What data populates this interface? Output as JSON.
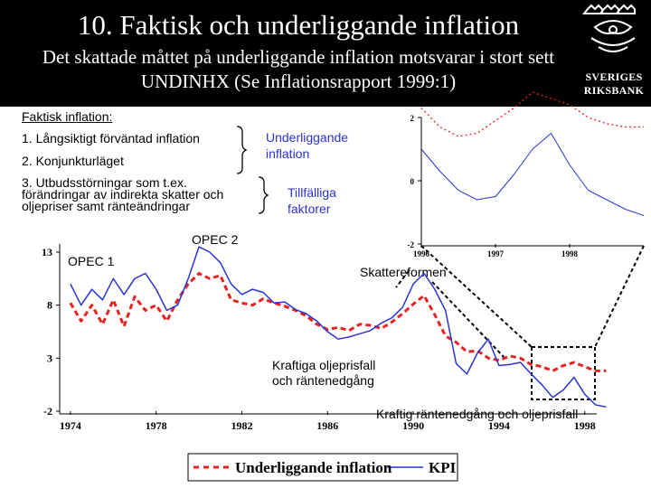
{
  "slide": {
    "title": "10. Faktisk och underliggande inflation",
    "subtitle": "Det skattade måttet på underliggande inflation motsvarar i stort sett UNDINHX (Se Inflationsrapport 1999:1)",
    "logo": {
      "line1": "SVERIGES",
      "line2": "RIKSBANK"
    }
  },
  "notes": {
    "heading": "Faktisk inflation:",
    "item1": "1. Långsiktigt förväntad inflation",
    "item2": "2. Konjunkturläget",
    "item3_line1": "3. Utbudsstörningar som t.ex.",
    "item3_line2": "förändringar av indirekta skatter och",
    "item3_line3": "oljepriser samt ränteändringar",
    "bracket1_line1": "Underliggande",
    "bracket1_line2": "inflation",
    "bracket2_line1": "Tillfälliga",
    "bracket2_line2": "faktorer"
  },
  "annotations": {
    "opec1": "OPEC 1",
    "opec2": "OPEC 2",
    "skattereformen": "Skattereformen",
    "oil1_line1": "Kraftiga oljeprisfall",
    "oil1_line2": "och räntenedgång",
    "oil2": "Kraftig räntenedgång och oljeprisfall"
  },
  "colors": {
    "underlying": "#e52222",
    "kpi": "#2a34d0",
    "header_bg": "#000000",
    "header_text": "#ffffff"
  },
  "chart_data": [
    {
      "type": "line",
      "x_ticks": [
        "1974",
        "1978",
        "1982",
        "1986",
        "1990",
        "1994",
        "1998"
      ],
      "y_ticks": [
        "13",
        "8",
        "3",
        "-2"
      ],
      "ylim": [
        -2,
        13
      ],
      "xlim": [
        1973.5,
        2000.5
      ],
      "series": [
        {
          "name": "Underliggande inflation",
          "style": "dashed",
          "color": "#e52222",
          "x": [
            1974.0,
            1974.5,
            1975.0,
            1975.5,
            1976.0,
            1976.5,
            1977.0,
            1977.5,
            1978.0,
            1978.5,
            1979.0,
            1979.5,
            1980.0,
            1980.5,
            1981.0,
            1981.5,
            1982.0,
            1982.5,
            1983.0,
            1983.5,
            1984.0,
            1984.5,
            1985.0,
            1985.5,
            1986.0,
            1986.5,
            1987.0,
            1987.5,
            1988.0,
            1988.5,
            1989.0,
            1989.5,
            1990.0,
            1990.5,
            1991.0,
            1991.5,
            1992.0,
            1992.5,
            1993.0,
            1993.5,
            1994.0,
            1994.5,
            1995.0,
            1995.5,
            1996.0,
            1996.5,
            1997.0,
            1997.5,
            1998.0,
            1998.5,
            1999.0
          ],
          "y": [
            8.2,
            6.5,
            8.0,
            6.2,
            8.5,
            6.0,
            8.8,
            7.5,
            8.0,
            6.5,
            8.5,
            10.0,
            11.0,
            10.5,
            10.8,
            8.5,
            8.2,
            8.0,
            8.6,
            8.2,
            7.9,
            7.5,
            7.0,
            6.2,
            5.7,
            5.9,
            5.6,
            6.2,
            6.1,
            5.8,
            6.4,
            7.2,
            8.1,
            8.9,
            7.1,
            5.1,
            4.5,
            3.6,
            3.7,
            3.0,
            2.8,
            3.2,
            3.0,
            2.4,
            2.2,
            1.8,
            2.3,
            2.6,
            2.2,
            1.8,
            1.8
          ]
        },
        {
          "name": "KPI",
          "style": "solid",
          "color": "#2a34d0",
          "x": [
            1974.0,
            1974.5,
            1975.0,
            1975.5,
            1976.0,
            1976.5,
            1977.0,
            1977.5,
            1978.0,
            1978.5,
            1979.0,
            1979.5,
            1980.0,
            1980.5,
            1981.0,
            1981.5,
            1982.0,
            1982.5,
            1983.0,
            1983.5,
            1984.0,
            1984.5,
            1985.0,
            1985.5,
            1986.0,
            1986.5,
            1987.0,
            1987.5,
            1988.0,
            1988.5,
            1989.0,
            1989.5,
            1990.0,
            1990.5,
            1991.0,
            1991.5,
            1992.0,
            1992.5,
            1993.0,
            1993.5,
            1994.0,
            1994.5,
            1995.0,
            1995.5,
            1996.0,
            1996.5,
            1997.0,
            1997.5,
            1998.0,
            1998.5,
            1999.0
          ],
          "y": [
            10.0,
            8.0,
            9.5,
            8.5,
            10.5,
            9.0,
            10.5,
            11.0,
            9.5,
            7.5,
            8.0,
            10.5,
            13.5,
            13.0,
            12.0,
            10.0,
            9.0,
            9.5,
            9.2,
            8.2,
            8.3,
            7.6,
            7.2,
            6.5,
            5.5,
            4.8,
            5.0,
            5.3,
            5.6,
            6.3,
            6.8,
            7.8,
            10.0,
            11.0,
            9.5,
            7.5,
            2.5,
            1.5,
            3.5,
            4.8,
            2.3,
            2.4,
            2.6,
            1.5,
            0.5,
            -0.7,
            0.0,
            1.2,
            -0.4,
            -1.4,
            -1.6
          ]
        }
      ],
      "legend": {
        "labels": [
          "Underliggande inflation",
          "KPI"
        ],
        "position": "bottom"
      }
    },
    {
      "type": "line",
      "x_ticks": [
        "1996",
        "1997",
        "1998"
      ],
      "y_ticks": [
        "2",
        "0",
        "-2"
      ],
      "ylim": [
        -2,
        2
      ],
      "xlim": [
        1996.0,
        1999.0
      ],
      "series": [
        {
          "name": "Underliggande inflation",
          "style": "dotted",
          "color": "#e52222",
          "x": [
            1996.0,
            1996.25,
            1996.5,
            1996.75,
            1997.0,
            1997.25,
            1997.5,
            1997.75,
            1998.0,
            1998.25,
            1998.5,
            1998.75,
            1999.0
          ],
          "y": [
            2.3,
            1.7,
            1.4,
            1.5,
            1.9,
            2.3,
            2.8,
            2.6,
            2.4,
            2.0,
            1.8,
            1.7,
            1.7
          ]
        },
        {
          "name": "KPI",
          "style": "solid",
          "color": "#2a34d0",
          "x": [
            1996.0,
            1996.25,
            1996.5,
            1996.75,
            1997.0,
            1997.25,
            1997.5,
            1997.75,
            1998.0,
            1998.25,
            1998.5,
            1998.75,
            1999.0
          ],
          "y": [
            1.0,
            0.3,
            -0.3,
            -0.6,
            -0.5,
            0.2,
            1.0,
            1.5,
            0.5,
            -0.3,
            -0.6,
            -0.9,
            -1.1
          ]
        }
      ]
    }
  ]
}
